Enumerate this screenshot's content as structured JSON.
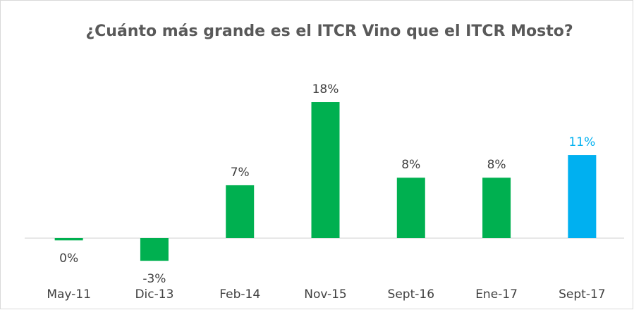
{
  "chart_data": {
    "type": "bar",
    "title": "¿Cuánto más grande es el ITCR Vino que el ITCR Mosto?",
    "categories": [
      "May-11",
      "Dic-13",
      "Feb-14",
      "Nov-15",
      "Sept-16",
      "Ene-17",
      "Sept-17"
    ],
    "values": [
      -0.3,
      -3,
      7,
      18,
      8,
      8,
      11
    ],
    "value_labels": [
      "0%",
      "-3%",
      "7%",
      "18%",
      "8%",
      "8%",
      "11%"
    ],
    "colors": [
      "#00b050",
      "#00b050",
      "#00b050",
      "#00b050",
      "#00b050",
      "#00b050",
      "#00b0f0"
    ],
    "grid": false
  }
}
